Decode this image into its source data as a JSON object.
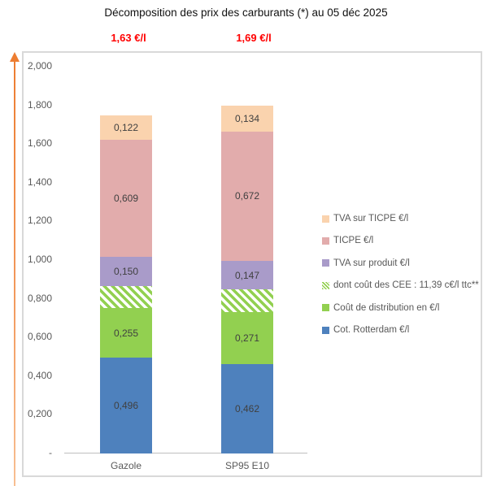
{
  "title": "Décomposition des prix des carburants (*) au 05 déc 2025",
  "chart_data": {
    "type": "bar",
    "stacked": true,
    "orientation": "vertical",
    "categories": [
      "Gazole",
      "SP95 E10"
    ],
    "series": [
      {
        "name": "Cot. Rotterdam €/l",
        "color": "#4e81bd",
        "pattern": "solid",
        "values": [
          0.496,
          0.462
        ],
        "value_labels": [
          "0,496",
          "0,462"
        ]
      },
      {
        "name": "Coût de distribution en €/l",
        "color": "#92d050",
        "pattern": "solid",
        "values": [
          0.255,
          0.271
        ],
        "value_labels": [
          "0,255",
          "0,271"
        ]
      },
      {
        "name": "dont coût des CEE : 11,39 c€/l ttc**",
        "color": "#92d050",
        "pattern": "diagonal-hatch",
        "values": [
          0.1139,
          0.1139
        ],
        "value_labels": [
          "",
          ""
        ]
      },
      {
        "name": "TVA sur produit €/l",
        "color": "#a99bc9",
        "pattern": "solid",
        "values": [
          0.15,
          0.147
        ],
        "value_labels": [
          "0,150",
          "0,147"
        ]
      },
      {
        "name": "TICPE €/l",
        "color": "#e2acac",
        "pattern": "solid",
        "values": [
          0.609,
          0.672
        ],
        "value_labels": [
          "0,609",
          "0,672"
        ]
      },
      {
        "name": "TVA sur TICPE €/l",
        "color": "#fad3ae",
        "pattern": "solid",
        "values": [
          0.122,
          0.134
        ],
        "value_labels": [
          "0,122",
          "0,134"
        ]
      }
    ],
    "totals_display": [
      "1,63 €/l",
      "1,69 €/l"
    ],
    "ylim": [
      0,
      2.0
    ],
    "y_ticks": [
      {
        "value": 2.0,
        "label": "2,000"
      },
      {
        "value": 1.8,
        "label": "1,800"
      },
      {
        "value": 1.6,
        "label": "1,600"
      },
      {
        "value": 1.4,
        "label": "1,400"
      },
      {
        "value": 1.2,
        "label": "1,200"
      },
      {
        "value": 1.0,
        "label": "1,000"
      },
      {
        "value": 0.8,
        "label": "0,800"
      },
      {
        "value": 0.6,
        "label": "0,600"
      },
      {
        "value": 0.4,
        "label": "0,400"
      },
      {
        "value": 0.2,
        "label": "0,200"
      },
      {
        "value": 0.0,
        "label": "-"
      }
    ],
    "grid": false,
    "legend_position": "right"
  },
  "legend": {
    "items": [
      {
        "label": "TVA sur TICPE €/l",
        "swatch": "#fad3ae",
        "pattern": "solid"
      },
      {
        "label": "TICPE €/l",
        "swatch": "#e2acac",
        "pattern": "solid"
      },
      {
        "label": "TVA sur produit €/l",
        "swatch": "#a99bc9",
        "pattern": "solid"
      },
      {
        "label": "dont coût des CEE : 11,39 c€/l ttc**",
        "swatch": "#92d050",
        "pattern": "diagonal-hatch"
      },
      {
        "label": "Coût de distribution en €/l",
        "swatch": "#92d050",
        "pattern": "solid"
      },
      {
        "label": "Cot. Rotterdam €/l",
        "swatch": "#4e81bd",
        "pattern": "solid"
      }
    ]
  },
  "colors": {
    "total_label": "#ff0000",
    "arrow": "#ed7d31",
    "chart_border": "#d9d9d9",
    "axis_line": "#bfbfbf",
    "tick_text": "#595959",
    "value_text": "#404040"
  }
}
